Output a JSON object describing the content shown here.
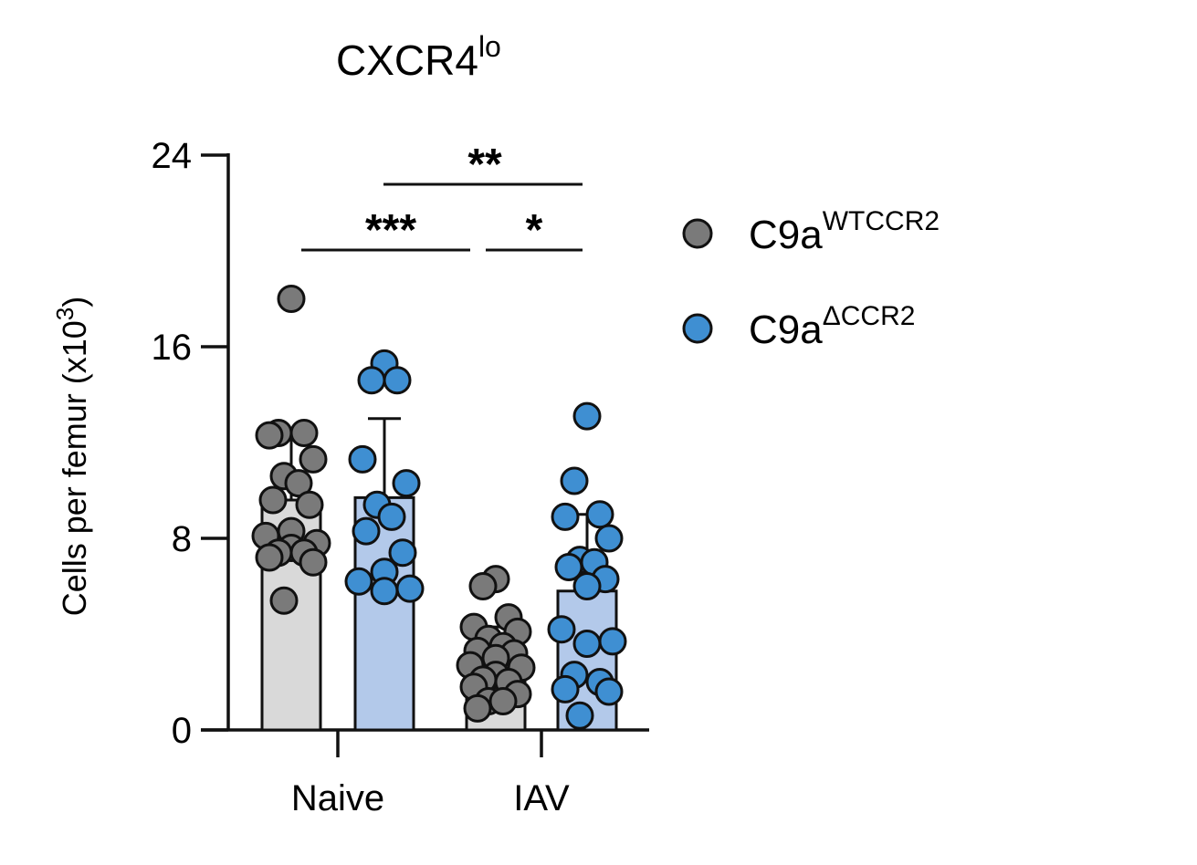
{
  "chart_data": {
    "type": "bar",
    "title": "CXCR4",
    "title_sup": "lo",
    "ylabel": "Cells per femur (x10",
    "ylabel_sup": "3",
    "ylabel_close": ")",
    "ylim": [
      0,
      24
    ],
    "yticks": [
      0,
      8,
      16,
      24
    ],
    "categories": [
      "Naive",
      "IAV"
    ],
    "series": [
      {
        "name": "C9a",
        "sup": "WTCCR2",
        "color": "#7a7a7a",
        "bar_fill": "#d9d9d9",
        "means": [
          9.6,
          3.0
        ],
        "error": [
          2.9,
          1.3
        ],
        "points": [
          [
            18.0,
            12.4,
            12.4,
            12.3,
            11.3,
            10.6,
            10.3,
            9.6,
            9.4,
            8.3,
            8.1,
            7.8,
            7.6,
            7.4,
            7.4,
            7.2,
            7.0,
            5.4
          ],
          [
            6.3,
            6.0,
            4.7,
            4.3,
            4.1,
            3.8,
            3.5,
            3.3,
            3.2,
            3.0,
            2.7,
            2.6,
            2.3,
            2.1,
            2.0,
            1.8,
            1.5,
            1.2,
            1.2,
            0.9
          ]
        ]
      },
      {
        "name": "C9a",
        "sup": "ΔCCR2",
        "color": "#3f8fd2",
        "bar_fill": "#b3c9ea",
        "means": [
          9.7,
          5.8
        ],
        "error": [
          3.3,
          3.2
        ],
        "points": [
          [
            15.3,
            14.6,
            14.6,
            11.3,
            10.3,
            9.4,
            8.9,
            8.3,
            7.4,
            6.6,
            6.2,
            5.9,
            5.8
          ],
          [
            13.1,
            10.4,
            9.0,
            8.9,
            8.0,
            7.1,
            7.0,
            6.8,
            6.3,
            6.0,
            4.2,
            3.7,
            3.6,
            2.3,
            2.0,
            1.7,
            1.6,
            0.6
          ]
        ]
      }
    ],
    "significance": [
      {
        "label": "**",
        "from": "Naive C9a ΔCCR2",
        "to": "IAV C9a ΔCCR2"
      },
      {
        "label": "***",
        "from": "Naive C9a WTCCR2",
        "to": "IAV C9a WTCCR2"
      },
      {
        "label": "*",
        "from": "IAV C9a WTCCR2",
        "to": "IAV C9a ΔCCR2"
      }
    ]
  }
}
